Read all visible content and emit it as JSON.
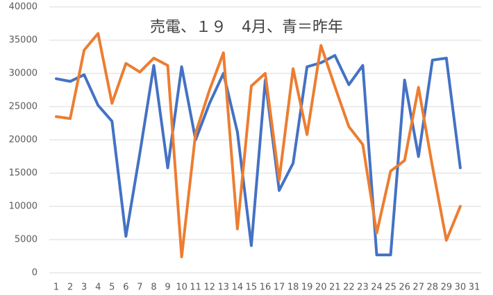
{
  "chart_data": {
    "type": "line",
    "title": "売電、１９　4月、青＝昨年",
    "categories": [
      "1",
      "2",
      "3",
      "4",
      "5",
      "6",
      "7",
      "8",
      "9",
      "10",
      "11",
      "12",
      "13",
      "14",
      "15",
      "16",
      "17",
      "18",
      "19",
      "20",
      "21",
      "22",
      "23",
      "24",
      "25",
      "26",
      "27",
      "28",
      "29",
      "30",
      "31"
    ],
    "series": [
      {
        "color": "#4472c4",
        "values": [
          29200,
          28800,
          29800,
          25200,
          22800,
          5500,
          18000,
          31200,
          15800,
          31000,
          20000,
          25500,
          30000,
          21200,
          4100,
          29000,
          12400,
          16500,
          31000,
          31600,
          32700,
          28300,
          31200,
          2700,
          2700,
          29000,
          17500,
          32000,
          32300,
          15800,
          null
        ]
      },
      {
        "color": "#ed7d31",
        "values": [
          23500,
          23200,
          33500,
          36000,
          25500,
          31500,
          30200,
          32300,
          31200,
          2400,
          21000,
          27500,
          33100,
          6600,
          28100,
          30000,
          14000,
          30700,
          20800,
          34200,
          28000,
          22000,
          19300,
          6000,
          15300,
          16900,
          27900,
          16000,
          4900,
          10000,
          null
        ]
      }
    ],
    "ylim": [
      0,
      40000
    ],
    "yticks": [
      0,
      5000,
      10000,
      15000,
      20000,
      25000,
      30000,
      35000,
      40000
    ],
    "grid": true
  }
}
